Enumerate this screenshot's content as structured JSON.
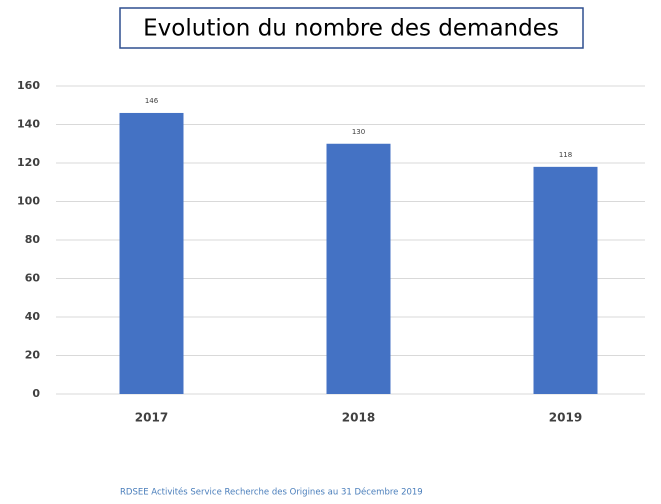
{
  "chart_data": {
    "type": "bar",
    "title": "Evolution du nombre des demandes",
    "categories": [
      "2017",
      "2018",
      "2019"
    ],
    "values": [
      146,
      130,
      118
    ],
    "color": "#4472c4",
    "ylim": [
      0,
      160
    ],
    "yticks": [
      0,
      20,
      40,
      60,
      80,
      100,
      120,
      140,
      160
    ],
    "grid": true,
    "footnote": "RDSEE Activités Service Recherche  des Origines au 31 Décembre 2019"
  }
}
